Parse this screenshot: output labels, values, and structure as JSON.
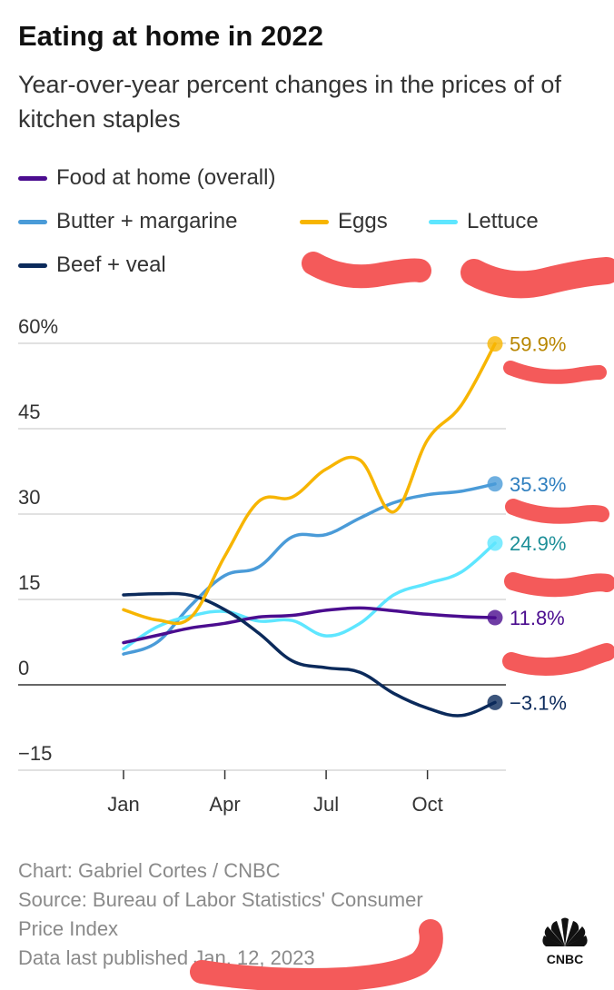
{
  "title": "Eating at home in 2022",
  "subtitle": "Year-over-year percent changes in the prices of of kitchen staples",
  "legend": [
    {
      "label": "Food at home (overall)",
      "color": "#4b0d8f"
    },
    {
      "label": "Butter + margarine",
      "color": "#4a9bd8"
    },
    {
      "label": "Eggs",
      "color": "#f7b500"
    },
    {
      "label": "Lettuce",
      "color": "#5ee6ff"
    },
    {
      "label": "Beef + veal",
      "color": "#0b2a5b"
    }
  ],
  "footer": {
    "chart_credit": "Chart: Gabriel Cortes / CNBC",
    "source_line1": "Source: Bureau of Labor Statistics' Consumer",
    "source_line2": "Price Index",
    "published": "Data last published Jan. 12, 2023"
  },
  "logo": {
    "text": "CNBC",
    "icon": "cnbc-peacock-icon"
  },
  "chart_data": {
    "type": "line",
    "title": "Eating at home in 2022",
    "subtitle": "Year-over-year percent changes in the prices of of kitchen staples",
    "x": [
      "Jan 2022",
      "Feb 2022",
      "Mar 2022",
      "Apr 2022",
      "May 2022",
      "Jun 2022",
      "Jul 2022",
      "Aug 2022",
      "Sep 2022",
      "Oct 2022",
      "Nov 2022",
      "Dec 2022"
    ],
    "x_tick_labels": [
      "Jan",
      "Apr",
      "Jul",
      "Oct"
    ],
    "x_tick_indices": [
      0,
      3,
      6,
      9
    ],
    "y_ticks": [
      60,
      45,
      30,
      15,
      0,
      -15
    ],
    "y_tick_labels": [
      "60%",
      "45",
      "30",
      "15",
      "0",
      "−15"
    ],
    "ylim": [
      -15,
      60
    ],
    "grid": true,
    "legend_position": "top",
    "series": [
      {
        "name": "Food at home (overall)",
        "color": "#4b0d8f",
        "label_color": "#4b0d8f",
        "end_label": "11.8%",
        "values": [
          7.4,
          8.7,
          10.0,
          10.8,
          11.9,
          12.2,
          13.1,
          13.5,
          13.0,
          12.4,
          12.0,
          11.8
        ]
      },
      {
        "name": "Butter + margarine",
        "color": "#4a9bd8",
        "label_color": "#2f7fbf",
        "end_label": "35.3%",
        "values": [
          5.4,
          7.5,
          14.0,
          19.2,
          20.7,
          26.0,
          26.4,
          29.3,
          32.0,
          33.4,
          34.0,
          35.3
        ]
      },
      {
        "name": "Eggs",
        "color": "#f7b500",
        "label_color": "#b88600",
        "end_label": "59.9%",
        "values": [
          13.2,
          11.4,
          11.9,
          22.6,
          32.2,
          33.0,
          37.9,
          39.5,
          30.4,
          43.0,
          49.1,
          59.9
        ]
      },
      {
        "name": "Lettuce",
        "color": "#5ee6ff",
        "label_color": "#1d8f98",
        "end_label": "24.9%",
        "values": [
          6.3,
          10.2,
          12.1,
          12.9,
          11.2,
          11.3,
          8.6,
          10.8,
          15.8,
          17.8,
          19.8,
          24.9
        ]
      },
      {
        "name": "Beef + veal",
        "color": "#0b2a5b",
        "label_color": "#0b2a5b",
        "end_label": "−3.1%",
        "values": [
          15.8,
          16.0,
          15.7,
          13.2,
          9.1,
          4.2,
          3.0,
          2.2,
          -1.5,
          -4.1,
          -5.4,
          -3.1
        ]
      }
    ]
  }
}
